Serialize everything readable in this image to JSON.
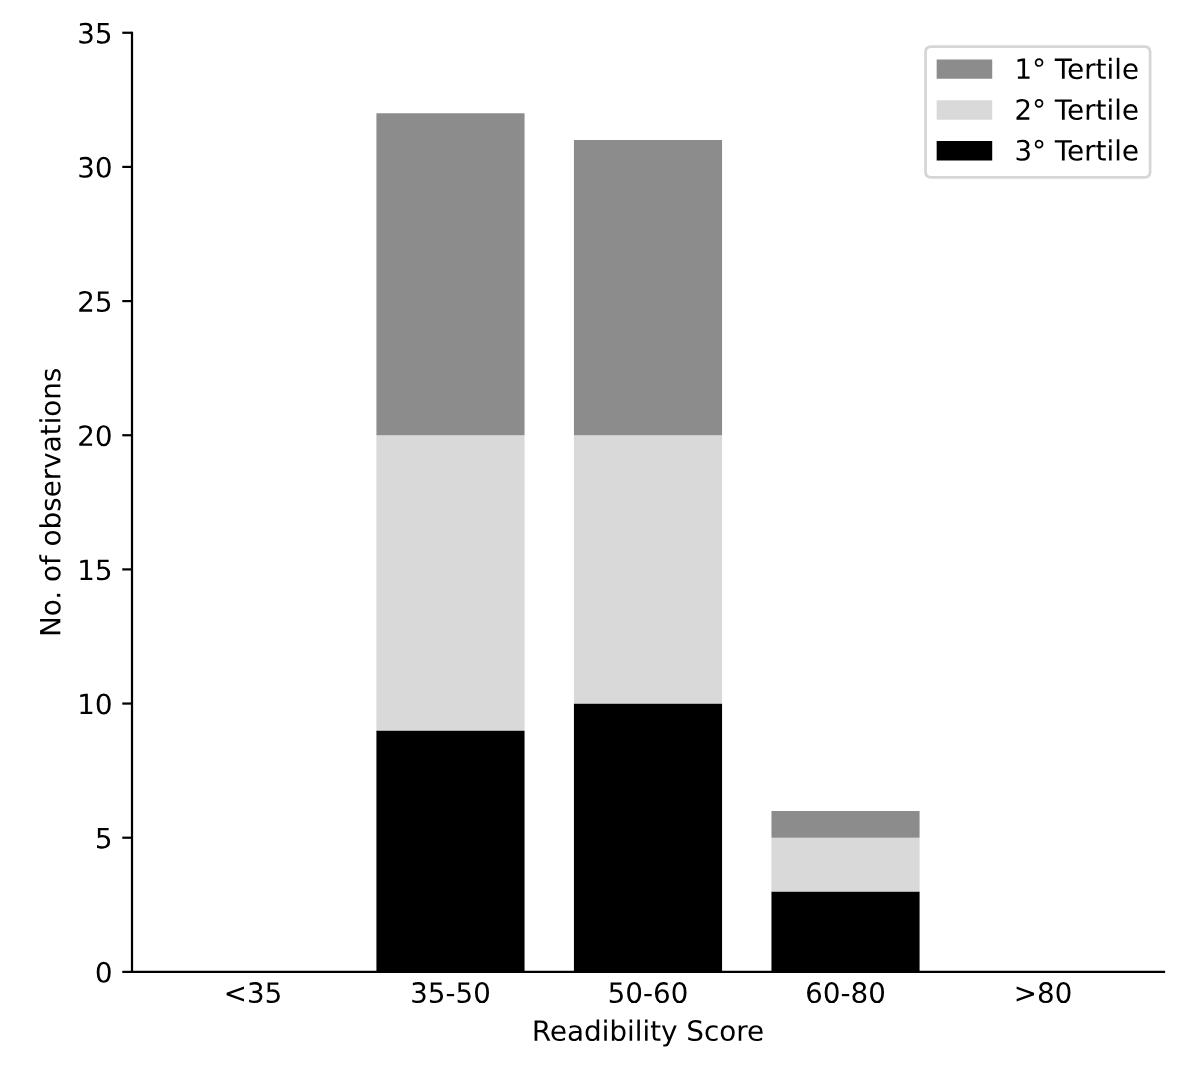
{
  "chart_data": {
    "type": "bar",
    "stacked": true,
    "xlabel": "Readibility Score",
    "ylabel": "No. of observations",
    "categories": [
      "<35",
      "35-50",
      "50-60",
      "60-80",
      ">80"
    ],
    "series": [
      {
        "name": "3° Tertile",
        "color": "#000000",
        "values": [
          0,
          9,
          10,
          3,
          0
        ]
      },
      {
        "name": "2° Tertile",
        "color": "#d9d9d9",
        "values": [
          0,
          11,
          10,
          2,
          0
        ]
      },
      {
        "name": "1° Tertile",
        "color": "#8c8c8c",
        "values": [
          0,
          12,
          11,
          1,
          0
        ]
      }
    ],
    "ylim": [
      0,
      35
    ],
    "yticks": [
      0,
      5,
      10,
      15,
      20,
      25,
      30,
      35
    ],
    "grid": false,
    "legend": "top right"
  }
}
